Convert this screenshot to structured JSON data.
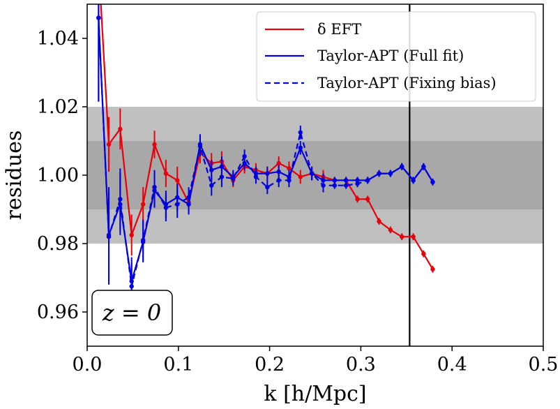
{
  "chart_data": {
    "type": "line",
    "xlabel": "k [h/Mpc]",
    "ylabel": "residues",
    "xlim": [
      0.0,
      0.5
    ],
    "ylim": [
      0.95,
      1.05
    ],
    "x_ticks": [
      0.0,
      0.1,
      0.2,
      0.3,
      0.4,
      0.5
    ],
    "x_tick_labels": [
      "0.0",
      "0.1",
      "0.2",
      "0.3",
      "0.4",
      "0.5"
    ],
    "y_ticks": [
      0.96,
      0.98,
      1.0,
      1.02,
      1.04
    ],
    "y_tick_labels": [
      "0.96",
      "0.98",
      "1.00",
      "1.02",
      "1.04"
    ],
    "bands": [
      {
        "y0": 0.98,
        "y1": 1.02,
        "color": "#c0c0c0"
      },
      {
        "y0": 0.99,
        "y1": 1.01,
        "color": "#a8a8a8"
      }
    ],
    "vline": {
      "x": 0.3535,
      "color": "#000000"
    },
    "annotation": "z = 0",
    "legend_position": "upper-right",
    "series": [
      {
        "name": "δ EFT",
        "color": "#e8000b",
        "style": "solid",
        "x": [
          0.0125,
          0.0237,
          0.0362,
          0.0487,
          0.0613,
          0.0738,
          0.0863,
          0.0988,
          0.1113,
          0.1238,
          0.1363,
          0.1475,
          0.16,
          0.1725,
          0.185,
          0.1975,
          0.21,
          0.2213,
          0.2338,
          0.2463,
          0.2588,
          0.2713,
          0.2838,
          0.2963,
          0.3075,
          0.32,
          0.3325,
          0.345,
          0.3575,
          0.3688,
          0.3788
        ],
        "y": [
          1.062,
          1.009,
          1.0135,
          0.9825,
          0.9915,
          1.009,
          1.0005,
          0.9985,
          0.992,
          1.0065,
          1.0035,
          1.004,
          0.9985,
          1.0025,
          1.0015,
          1.0005,
          1.0035,
          1.002,
          0.9995,
          1.0005,
          0.9995,
          0.9985,
          0.9985,
          0.993,
          0.993,
          0.9865,
          0.984,
          0.982,
          0.982,
          0.977,
          0.9725
        ],
        "yerr": [
          0.012,
          0.008,
          0.006,
          0.006,
          0.005,
          0.004,
          0.004,
          0.004,
          0.003,
          0.003,
          0.003,
          0.003,
          0.002,
          0.002,
          0.002,
          0.002,
          0.002,
          0.002,
          0.002,
          0.002,
          0.002,
          0.001,
          0.001,
          0.001,
          0.001,
          0.001,
          0.001,
          0.001,
          0.001,
          0.001,
          0.001
        ]
      },
      {
        "name": "Taylor-APT (Full fit)",
        "color": "#0000e0",
        "style": "solid",
        "x": [
          0.0125,
          0.0237,
          0.0362,
          0.0487,
          0.0613,
          0.0738,
          0.0863,
          0.0988,
          0.1113,
          0.1238,
          0.1363,
          0.1475,
          0.16,
          0.1725,
          0.185,
          0.1975,
          0.21,
          0.2213,
          0.2338,
          0.2463,
          0.2588,
          0.2713,
          0.2838,
          0.2963,
          0.3075,
          0.32,
          0.3325,
          0.345,
          0.3575,
          0.3688,
          0.3788
        ],
        "y": [
          1.046,
          0.9825,
          0.9915,
          0.969,
          0.9805,
          0.9955,
          0.9915,
          0.9935,
          0.9915,
          1.009,
          1.0015,
          1.0025,
          0.9995,
          1.0035,
          1.0005,
          1.0005,
          1.001,
          0.9995,
          1.008,
          1.0005,
          0.9985,
          0.9985,
          0.9985,
          0.9985,
          0.9985,
          1.0005,
          1.0005,
          1.0025,
          0.9985,
          1.0025,
          0.998
        ],
        "yerr": [
          0.0245,
          0.014,
          0.009,
          0.007,
          0.006,
          0.005,
          0.004,
          0.004,
          0.003,
          0.003,
          0.003,
          0.003,
          0.002,
          0.002,
          0.002,
          0.002,
          0.002,
          0.002,
          0.002,
          0.002,
          0.002,
          0.001,
          0.001,
          0.001,
          0.001,
          0.001,
          0.001,
          0.001,
          0.001,
          0.001,
          0.001
        ]
      },
      {
        "name": "Taylor-APT (Fixing bias)",
        "color": "#0000e0",
        "style": "dashed",
        "x": [
          0.0125,
          0.0237,
          0.0362,
          0.0487,
          0.0613,
          0.0738,
          0.0863,
          0.0988,
          0.1113,
          0.1238,
          0.1363,
          0.1475,
          0.16,
          0.1725,
          0.185,
          0.1975,
          0.21,
          0.2213,
          0.2338,
          0.2463,
          0.2588,
          0.2713,
          0.2838,
          0.2963,
          0.3075,
          0.32,
          0.3325,
          0.345,
          0.3575,
          0.3688,
          0.3788
        ],
        "y": [
          1.046,
          0.982,
          0.993,
          0.9675,
          0.981,
          0.9965,
          0.9905,
          0.9915,
          0.9935,
          1.0085,
          0.997,
          0.9995,
          0.999,
          1.0055,
          0.9995,
          0.9965,
          0.9985,
          0.9985,
          1.0125,
          1.0005,
          0.997,
          0.997,
          0.997,
          0.9975,
          0.9985,
          1.0005,
          1.0005,
          1.0025,
          0.9985,
          1.0025,
          0.998
        ],
        "yerr": [
          0.0245,
          0.014,
          0.009,
          0.007,
          0.006,
          0.005,
          0.004,
          0.004,
          0.003,
          0.003,
          0.003,
          0.003,
          0.002,
          0.002,
          0.002,
          0.002,
          0.002,
          0.002,
          0.002,
          0.002,
          0.002,
          0.001,
          0.001,
          0.001,
          0.001,
          0.001,
          0.001,
          0.001,
          0.001,
          0.001,
          0.001
        ]
      }
    ]
  }
}
